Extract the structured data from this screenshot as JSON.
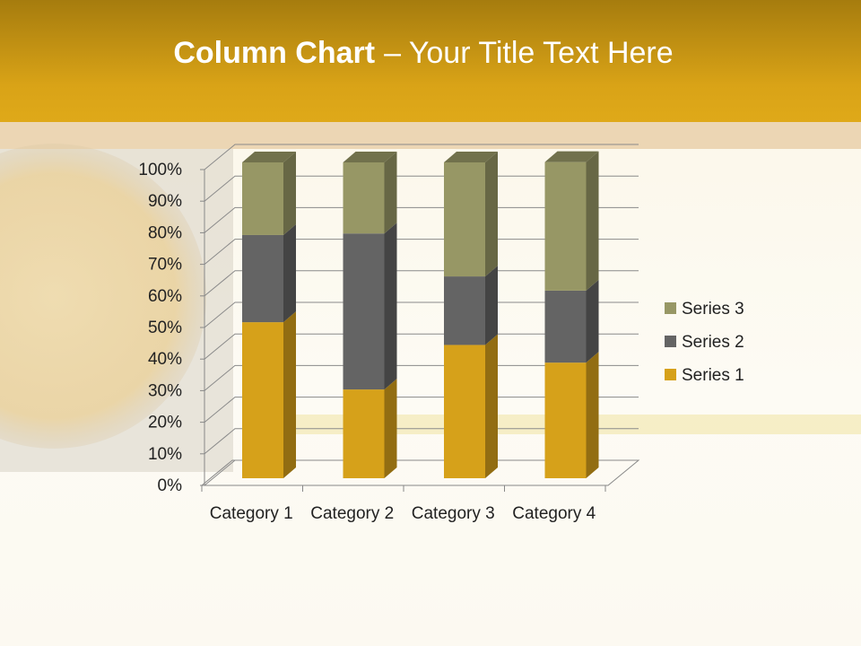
{
  "chart_data": {
    "type": "bar3d_stacked_percent",
    "title_parts": [
      "Column Chart",
      "– Your Title Text Here"
    ],
    "categories": [
      "Category 1",
      "Category 2",
      "Category 3",
      "Category 4"
    ],
    "series": [
      {
        "name": "Series 1",
        "color": "#d6a11a",
        "values": [
          49.4,
          28.1,
          42.2,
          36.6
        ]
      },
      {
        "name": "Series 2",
        "color": "#646464",
        "values": [
          27.6,
          49.4,
          21.7,
          22.8
        ]
      },
      {
        "name": "Series 3",
        "color": "#979765",
        "values": [
          23.0,
          22.5,
          36.1,
          40.7
        ]
      }
    ],
    "ylim": [
      0,
      100
    ],
    "yticks": [
      {
        "value": 0,
        "label": "0%"
      },
      {
        "value": 10,
        "label": "10%"
      },
      {
        "value": 20,
        "label": "20%"
      },
      {
        "value": 30,
        "label": "30%"
      },
      {
        "value": 40,
        "label": "40%"
      },
      {
        "value": 50,
        "label": "50%"
      },
      {
        "value": 60,
        "label": "60%"
      },
      {
        "value": 70,
        "label": "70%"
      },
      {
        "value": 80,
        "label": "80%"
      },
      {
        "value": 90,
        "label": "90%"
      },
      {
        "value": 100,
        "label": "100%"
      }
    ],
    "grid": true,
    "legend": "right"
  }
}
